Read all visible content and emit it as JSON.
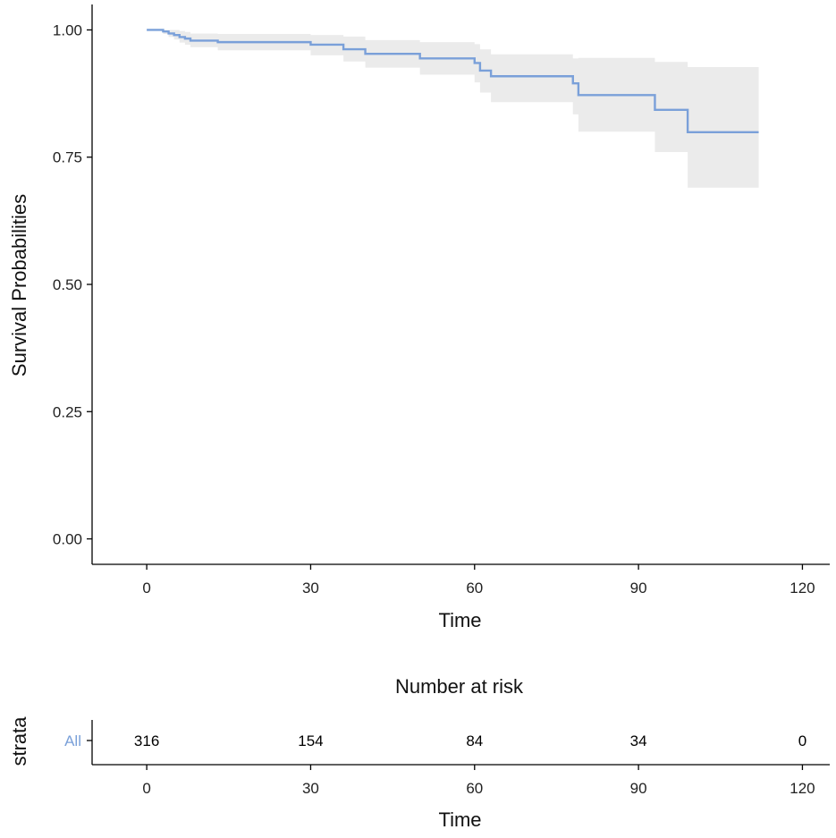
{
  "colors": {
    "curve": "#7aa0d9",
    "band": "#ebebeb",
    "strata_label": "#7aa0d9"
  },
  "chart_data": [
    {
      "type": "line",
      "title": "",
      "xlabel": "Time",
      "ylabel": "Survival Probabilities",
      "xlim": [
        -10,
        125
      ],
      "ylim": [
        -0.05,
        1.05
      ],
      "xticks": [
        0,
        30,
        60,
        90,
        120
      ],
      "xtick_labels": [
        "0",
        "30",
        "60",
        "90",
        "120"
      ],
      "yticks": [
        0,
        0.25,
        0.5,
        0.75,
        1.0
      ],
      "ytick_labels": [
        "0.00",
        "0.25",
        "0.50",
        "0.75",
        "1.00"
      ],
      "series": [
        {
          "name": "All",
          "step": true,
          "time": [
            0,
            3,
            4,
            5,
            6,
            7,
            8,
            13,
            30,
            36,
            40,
            50,
            60,
            61,
            63,
            78,
            79,
            93,
            99,
            112
          ],
          "surv": [
            1.0,
            0.997,
            0.993,
            0.99,
            0.986,
            0.983,
            0.979,
            0.976,
            0.971,
            0.962,
            0.953,
            0.944,
            0.935,
            0.92,
            0.909,
            0.895,
            0.872,
            0.843,
            0.799,
            0.799
          ],
          "lower": [
            1.0,
            0.992,
            0.986,
            0.981,
            0.975,
            0.971,
            0.966,
            0.96,
            0.95,
            0.938,
            0.926,
            0.912,
            0.897,
            0.877,
            0.858,
            0.834,
            0.8,
            0.76,
            0.69,
            0.69
          ],
          "upper": [
            1.0,
            1.0,
            1.0,
            1.0,
            0.998,
            0.996,
            0.993,
            0.992,
            0.99,
            0.987,
            0.98,
            0.976,
            0.972,
            0.962,
            0.952,
            0.944,
            0.945,
            0.937,
            0.927,
            0.927
          ]
        }
      ]
    },
    {
      "type": "table",
      "title": "Number at risk",
      "xlabel": "Time",
      "ylabel": "strata",
      "xlim": [
        -10,
        125
      ],
      "xticks": [
        0,
        30,
        60,
        90,
        120
      ],
      "xtick_labels": [
        "0",
        "30",
        "60",
        "90",
        "120"
      ],
      "rows": [
        {
          "label": "All",
          "times": [
            0,
            30,
            60,
            90,
            120
          ],
          "values": [
            "316",
            "154",
            "84",
            "34",
            "0"
          ]
        }
      ]
    }
  ]
}
